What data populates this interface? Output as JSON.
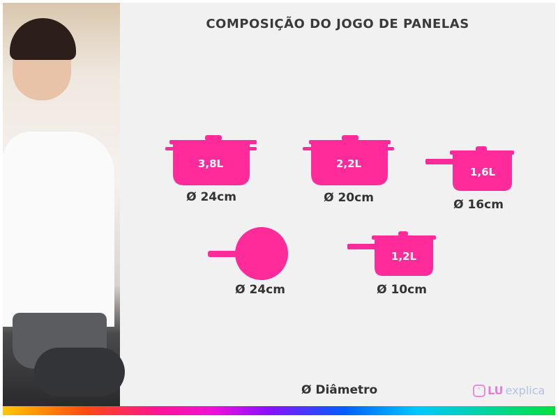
{
  "title": "COMPOSIÇÃO DO JOGO DE PANELAS",
  "accent_color": "#ff2b9b",
  "items": [
    {
      "type": "caçarola",
      "volume": "3,8L",
      "diameter": "Ø 24cm"
    },
    {
      "type": "caçarola",
      "volume": "2,2L",
      "diameter": "Ø 20cm"
    },
    {
      "type": "panela",
      "volume": "1,6L",
      "diameter": "Ø 16cm"
    },
    {
      "type": "frigideira",
      "diameter": "Ø 24cm"
    },
    {
      "type": "panela",
      "volume": "1,2L",
      "diameter": "Ø 10cm"
    }
  ],
  "legend": "Ø Diâmetro",
  "logo": {
    "lu": "LU",
    "explica": "explica"
  }
}
